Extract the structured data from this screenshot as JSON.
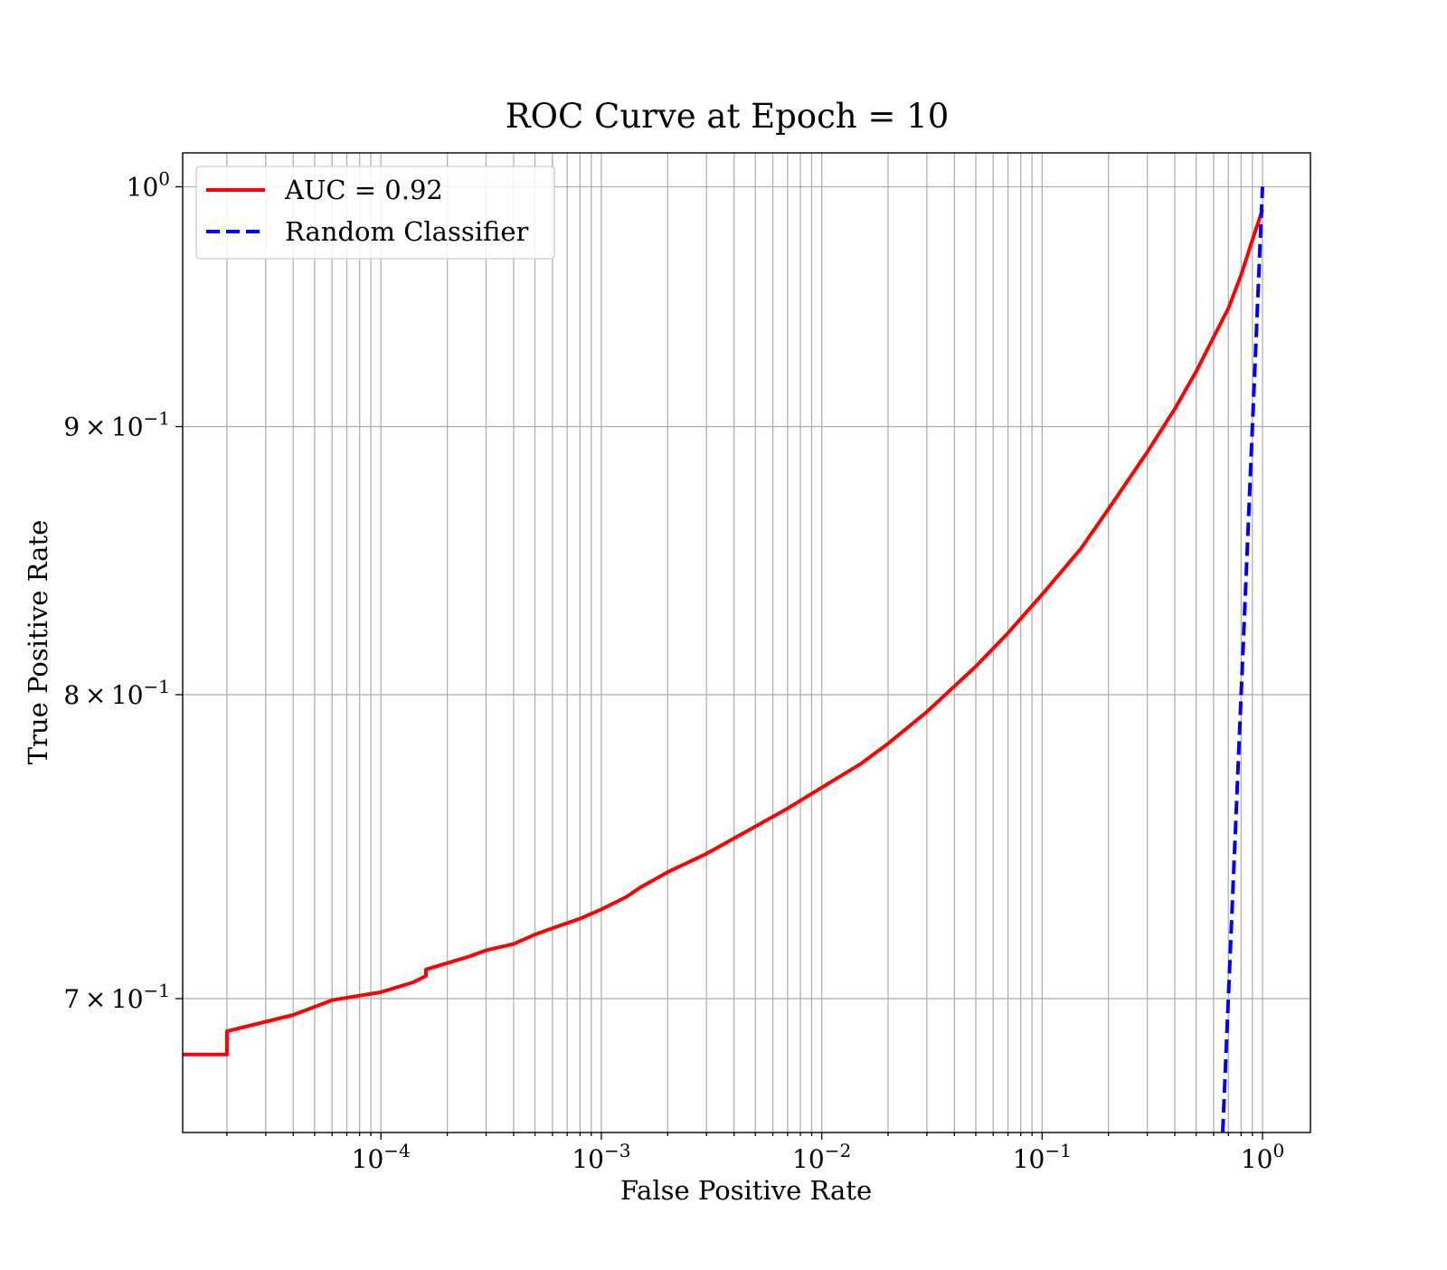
{
  "chart_data": {
    "type": "line",
    "title": "ROC Curve at Epoch = 10",
    "xlabel": "False Positive Rate",
    "ylabel": "True Positive Rate",
    "xscale": "log",
    "yscale": "log",
    "xlim": [
      1.26e-05,
      1.65
    ],
    "ylim": [
      0.66,
      1.015
    ],
    "grid": "both-major-and-minor-x",
    "legend_position": "top-left",
    "x_ticks": [
      {
        "value": 0.0001,
        "base": "10",
        "exp": "−4"
      },
      {
        "value": 0.001,
        "base": "10",
        "exp": "−3"
      },
      {
        "value": 0.01,
        "base": "10",
        "exp": "−2"
      },
      {
        "value": 0.1,
        "base": "10",
        "exp": "−1"
      },
      {
        "value": 1,
        "base": "10",
        "exp": "0"
      }
    ],
    "y_ticks": [
      {
        "value": 0.7,
        "mant": "7",
        "base": "10",
        "exp": "−1"
      },
      {
        "value": 0.8,
        "mant": "8",
        "base": "10",
        "exp": "−1"
      },
      {
        "value": 0.9,
        "mant": "9",
        "base": "10",
        "exp": "−1"
      },
      {
        "value": 1.0,
        "mant": "",
        "base": "10",
        "exp": "0"
      }
    ],
    "series": [
      {
        "name": "AUC = 0.92",
        "color": "#ff0000",
        "style": "solid",
        "x": [
          1.26e-05,
          2e-05,
          2e-05,
          4e-05,
          6e-05,
          0.0001,
          0.00014,
          0.00016,
          0.00016,
          0.0002,
          0.00025,
          0.0003,
          0.0004,
          0.0005,
          0.0006,
          0.0008,
          0.001,
          0.0013,
          0.0015,
          0.002,
          0.003,
          0.005,
          0.007,
          0.01,
          0.015,
          0.02,
          0.03,
          0.05,
          0.07,
          0.1,
          0.15,
          0.2,
          0.3,
          0.4,
          0.5,
          0.6,
          0.7,
          0.8,
          0.9,
          1.0
        ],
        "y": [
          0.683,
          0.683,
          0.69,
          0.695,
          0.6995,
          0.702,
          0.705,
          0.707,
          0.709,
          0.711,
          0.713,
          0.715,
          0.717,
          0.72,
          0.722,
          0.725,
          0.728,
          0.732,
          0.735,
          0.74,
          0.746,
          0.755,
          0.761,
          0.768,
          0.776,
          0.783,
          0.794,
          0.81,
          0.822,
          0.836,
          0.853,
          0.868,
          0.89,
          0.907,
          0.922,
          0.936,
          0.948,
          0.962,
          0.977,
          0.99
        ]
      },
      {
        "name": "Random Classifier",
        "color": "#0000ff",
        "style": "dashed",
        "x": [
          0.66,
          1.0
        ],
        "y": [
          0.66,
          1.0
        ]
      }
    ]
  }
}
